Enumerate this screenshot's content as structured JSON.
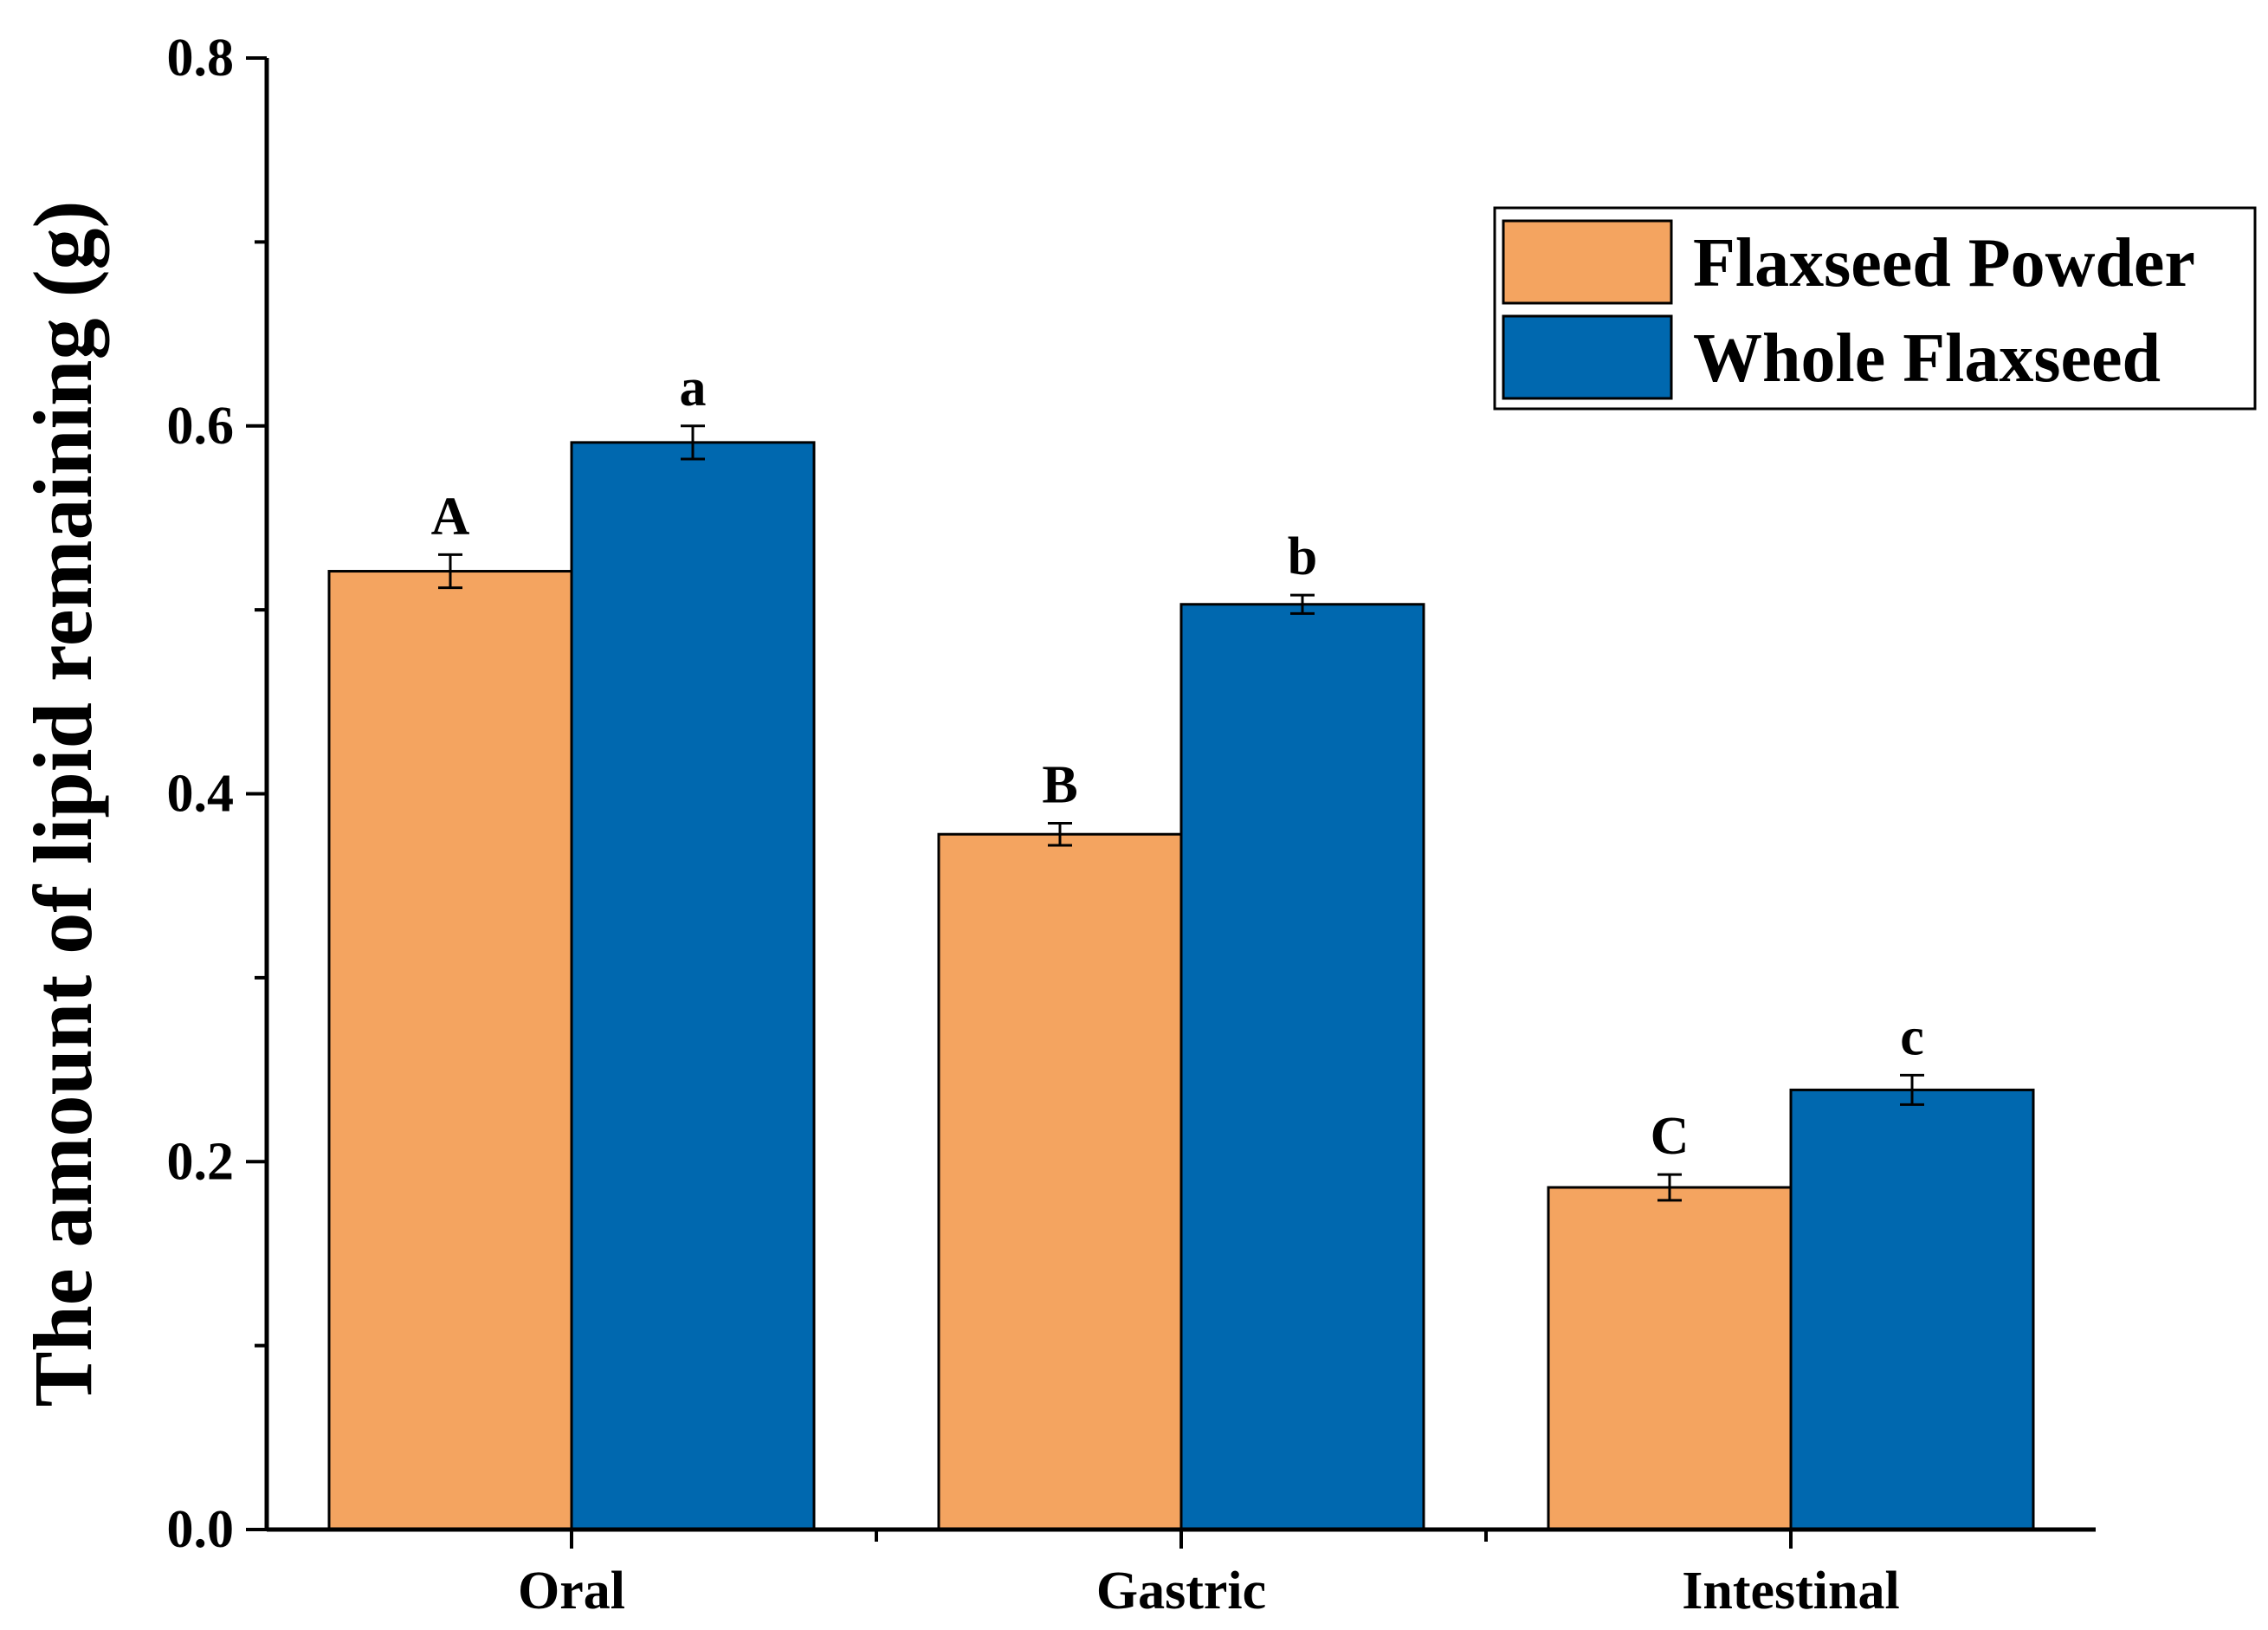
{
  "chart_data": {
    "type": "bar",
    "title": "",
    "xlabel": "",
    "ylabel": "The amount of lipid remaining (g)",
    "ylim": [
      0,
      0.8
    ],
    "yticks": [
      "0.0",
      "0.2",
      "0.4",
      "0.6",
      "0.8"
    ],
    "yticks_values": [
      0,
      0.2,
      0.4,
      0.6,
      0.8
    ],
    "categories": [
      "Oral",
      "Gastric",
      "Intestinal"
    ],
    "series": [
      {
        "name": "Flaxseed Powder",
        "color": "#F4A460",
        "values": [
          0.521,
          0.378,
          0.186
        ],
        "errors": [
          0.009,
          0.006,
          0.007
        ],
        "letters": [
          "A",
          "B",
          "C"
        ]
      },
      {
        "name": "Whole Flaxseed",
        "color": "#0068AF",
        "values": [
          0.591,
          0.503,
          0.239
        ],
        "errors": [
          0.009,
          0.005,
          0.008
        ],
        "letters": [
          "a",
          "b",
          "c"
        ]
      }
    ],
    "legend_position": "top-right",
    "grid": false
  }
}
